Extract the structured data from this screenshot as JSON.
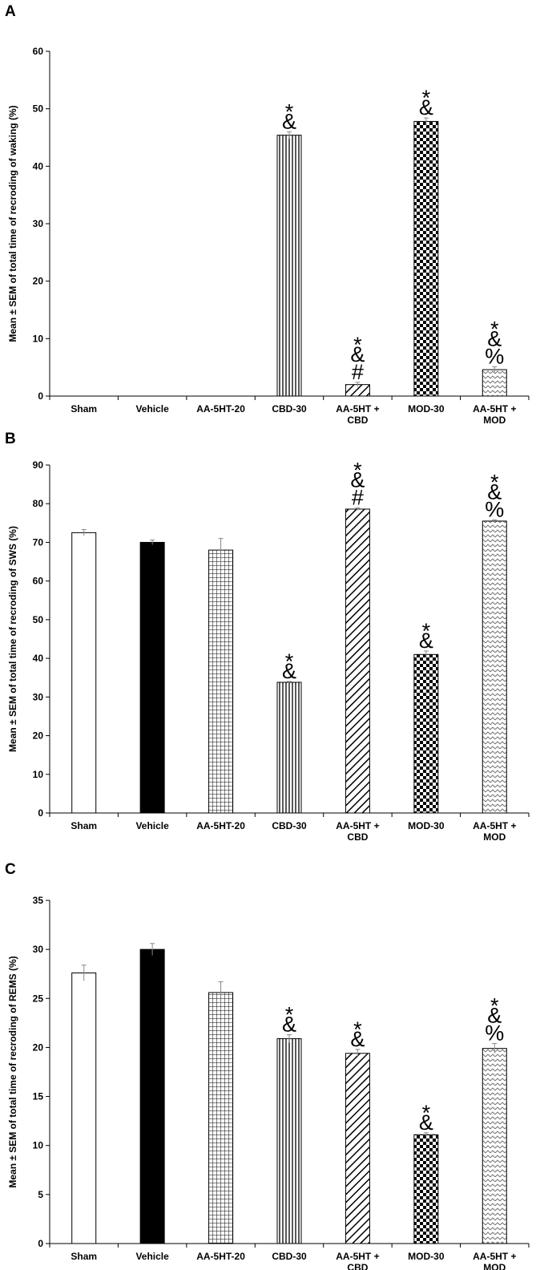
{
  "figure": {
    "label": "Figure with three bar-chart panels"
  },
  "chart_data": [
    {
      "type": "bar",
      "panel_label": "A",
      "ylabel": "Mean ± SEM of total time of recroding of waking (%)",
      "ylim": [
        0,
        60
      ],
      "yticks": [
        0,
        10,
        20,
        30,
        40,
        50,
        60
      ],
      "categories": [
        [
          "Sham"
        ],
        [
          "Vehicle"
        ],
        [
          "AA-5HT-20"
        ],
        [
          "CBD-30"
        ],
        [
          "AA-5HT +",
          "CBD"
        ],
        [
          "MOD-30"
        ],
        [
          "AA-5HT +",
          "MOD"
        ]
      ],
      "values": [
        0,
        0,
        0,
        45.4,
        2.0,
        47.8,
        4.6
      ],
      "errors": [
        0,
        0,
        0,
        0.6,
        0.4,
        0.6,
        0.5
      ],
      "patterns": [
        "white",
        "black",
        "grid",
        "vertical",
        "diagonal",
        "checker",
        "zigzag"
      ],
      "annotations": [
        [],
        [],
        [],
        [
          "*",
          "&"
        ],
        [
          "*",
          "&",
          "#"
        ],
        [
          "*",
          "&"
        ],
        [
          "*",
          "&",
          "%"
        ]
      ]
    },
    {
      "type": "bar",
      "panel_label": "B",
      "ylabel": "Mean ± SEM of total time of recroding of SWS (%)",
      "ylim": [
        0,
        90
      ],
      "yticks": [
        0,
        10,
        20,
        30,
        40,
        50,
        60,
        70,
        80,
        90
      ],
      "categories": [
        [
          "Sham"
        ],
        [
          "Vehicle"
        ],
        [
          "AA-5HT-20"
        ],
        [
          "CBD-30"
        ],
        [
          "AA-5HT +",
          "CBD"
        ],
        [
          "MOD-30"
        ],
        [
          "AA-5HT +",
          "MOD"
        ]
      ],
      "values": [
        72.5,
        70.0,
        68.0,
        33.8,
        78.6,
        41.0,
        75.5
      ],
      "errors": [
        0.8,
        0.6,
        3.0,
        0.2,
        0.3,
        0.9,
        0.3
      ],
      "patterns": [
        "white",
        "black",
        "grid",
        "vertical",
        "diagonal",
        "checker",
        "zigzag"
      ],
      "annotations": [
        [],
        [],
        [],
        [
          "*",
          "&"
        ],
        [
          "*",
          "&",
          "#"
        ],
        [
          "*",
          "&"
        ],
        [
          "*",
          "&",
          "%"
        ]
      ]
    },
    {
      "type": "bar",
      "panel_label": "C",
      "ylabel": "Mean ± SEM of total time of recroding of REMS (%)",
      "ylim": [
        0,
        35
      ],
      "yticks": [
        0,
        5,
        10,
        15,
        20,
        25,
        30,
        35
      ],
      "categories": [
        [
          "Sham"
        ],
        [
          "Vehicle"
        ],
        [
          "AA-5HT-20"
        ],
        [
          "CBD-30"
        ],
        [
          "AA-5HT +",
          "CBD"
        ],
        [
          "MOD-30"
        ],
        [
          "AA-5HT +",
          "MOD"
        ]
      ],
      "values": [
        27.6,
        30.0,
        25.6,
        20.9,
        19.4,
        11.1,
        19.9
      ],
      "errors": [
        0.8,
        0.6,
        1.1,
        0.4,
        0.4,
        0.2,
        0.5
      ],
      "patterns": [
        "white",
        "black",
        "grid",
        "vertical",
        "diagonal",
        "checker",
        "zigzag"
      ],
      "annotations": [
        [],
        [],
        [],
        [
          "*",
          "&"
        ],
        [
          "*",
          "&"
        ],
        [
          "*",
          "&"
        ],
        [
          "*",
          "&",
          "%"
        ]
      ]
    }
  ]
}
